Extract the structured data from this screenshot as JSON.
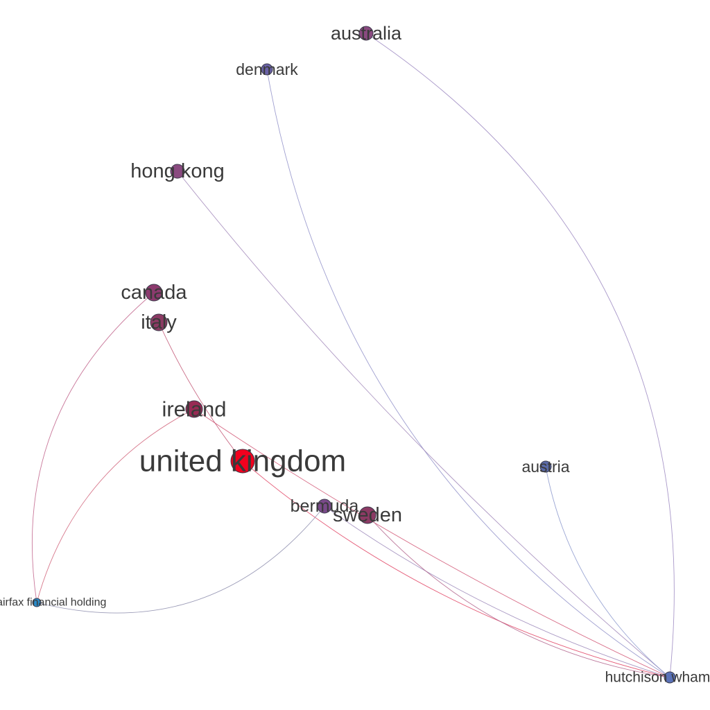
{
  "nodes": [
    {
      "id": "australia",
      "label": "australia",
      "color": "#8a4a80"
    },
    {
      "id": "denmark",
      "label": "denmark",
      "color": "#6a62a8"
    },
    {
      "id": "hong-kong",
      "label": "hong kong",
      "color": "#8a4a80"
    },
    {
      "id": "canada",
      "label": "canada",
      "color": "#8c3a6e"
    },
    {
      "id": "italy",
      "label": "italy",
      "color": "#8c3a64"
    },
    {
      "id": "ireland",
      "label": "ireland",
      "color": "#982a54"
    },
    {
      "id": "united-kingdom",
      "label": "united kingdom",
      "color": "#f2001e"
    },
    {
      "id": "bermuda",
      "label": "bermuda",
      "color": "#7a4a8a"
    },
    {
      "id": "sweden",
      "label": "sweden",
      "color": "#8c3a64"
    },
    {
      "id": "austria",
      "label": "austria",
      "color": "#5a6aa8"
    },
    {
      "id": "fairfax",
      "label": "fairfax financial holding",
      "color": "#2a8ac8"
    },
    {
      "id": "hutchison",
      "label": "hutchison whampoa",
      "color": "#5a72b8"
    }
  ],
  "edges": [
    {
      "source": "australia",
      "target": "hutchison",
      "color": "#9a86c0"
    },
    {
      "source": "denmark",
      "target": "hutchison",
      "color": "#8e8ec8"
    },
    {
      "source": "hong-kong",
      "target": "hutchison",
      "color": "#a086b8"
    },
    {
      "source": "austria",
      "target": "hutchison",
      "color": "#8a96cc"
    },
    {
      "source": "united-kingdom",
      "target": "hutchison",
      "color": "#e04060"
    },
    {
      "source": "ireland",
      "target": "hutchison",
      "color": "#d05070"
    },
    {
      "source": "bermuda",
      "target": "hutchison",
      "color": "#9a86b8"
    },
    {
      "source": "sweden",
      "target": "hutchison",
      "color": "#b0608a"
    },
    {
      "source": "canada",
      "target": "fairfax",
      "color": "#c06088"
    },
    {
      "source": "ireland",
      "target": "fairfax",
      "color": "#d06078"
    },
    {
      "source": "italy",
      "target": "united-kingdom",
      "color": "#c05070"
    },
    {
      "source": "fairfax",
      "target": "bermuda",
      "color": "#8a8aaa"
    }
  ]
}
